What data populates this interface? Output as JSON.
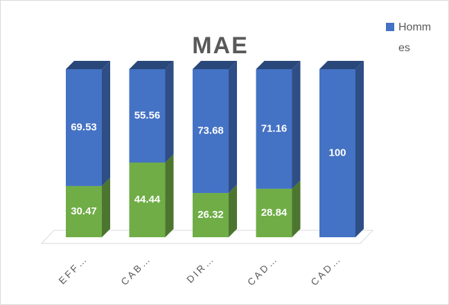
{
  "chart_data": {
    "type": "bar3d_stacked",
    "title": "MAE",
    "categories": [
      "EFF…",
      "CAB…",
      "DIR…",
      "CAD…",
      "CAD…"
    ],
    "series": [
      {
        "color": "#70ad47",
        "values": [
          30.47,
          44.44,
          26.32,
          28.84,
          0
        ]
      },
      {
        "name": "Hommes",
        "color": "#4472c4",
        "values": [
          69.53,
          55.56,
          73.68,
          71.16,
          100
        ]
      }
    ],
    "ylim": [
      0,
      100
    ]
  }
}
